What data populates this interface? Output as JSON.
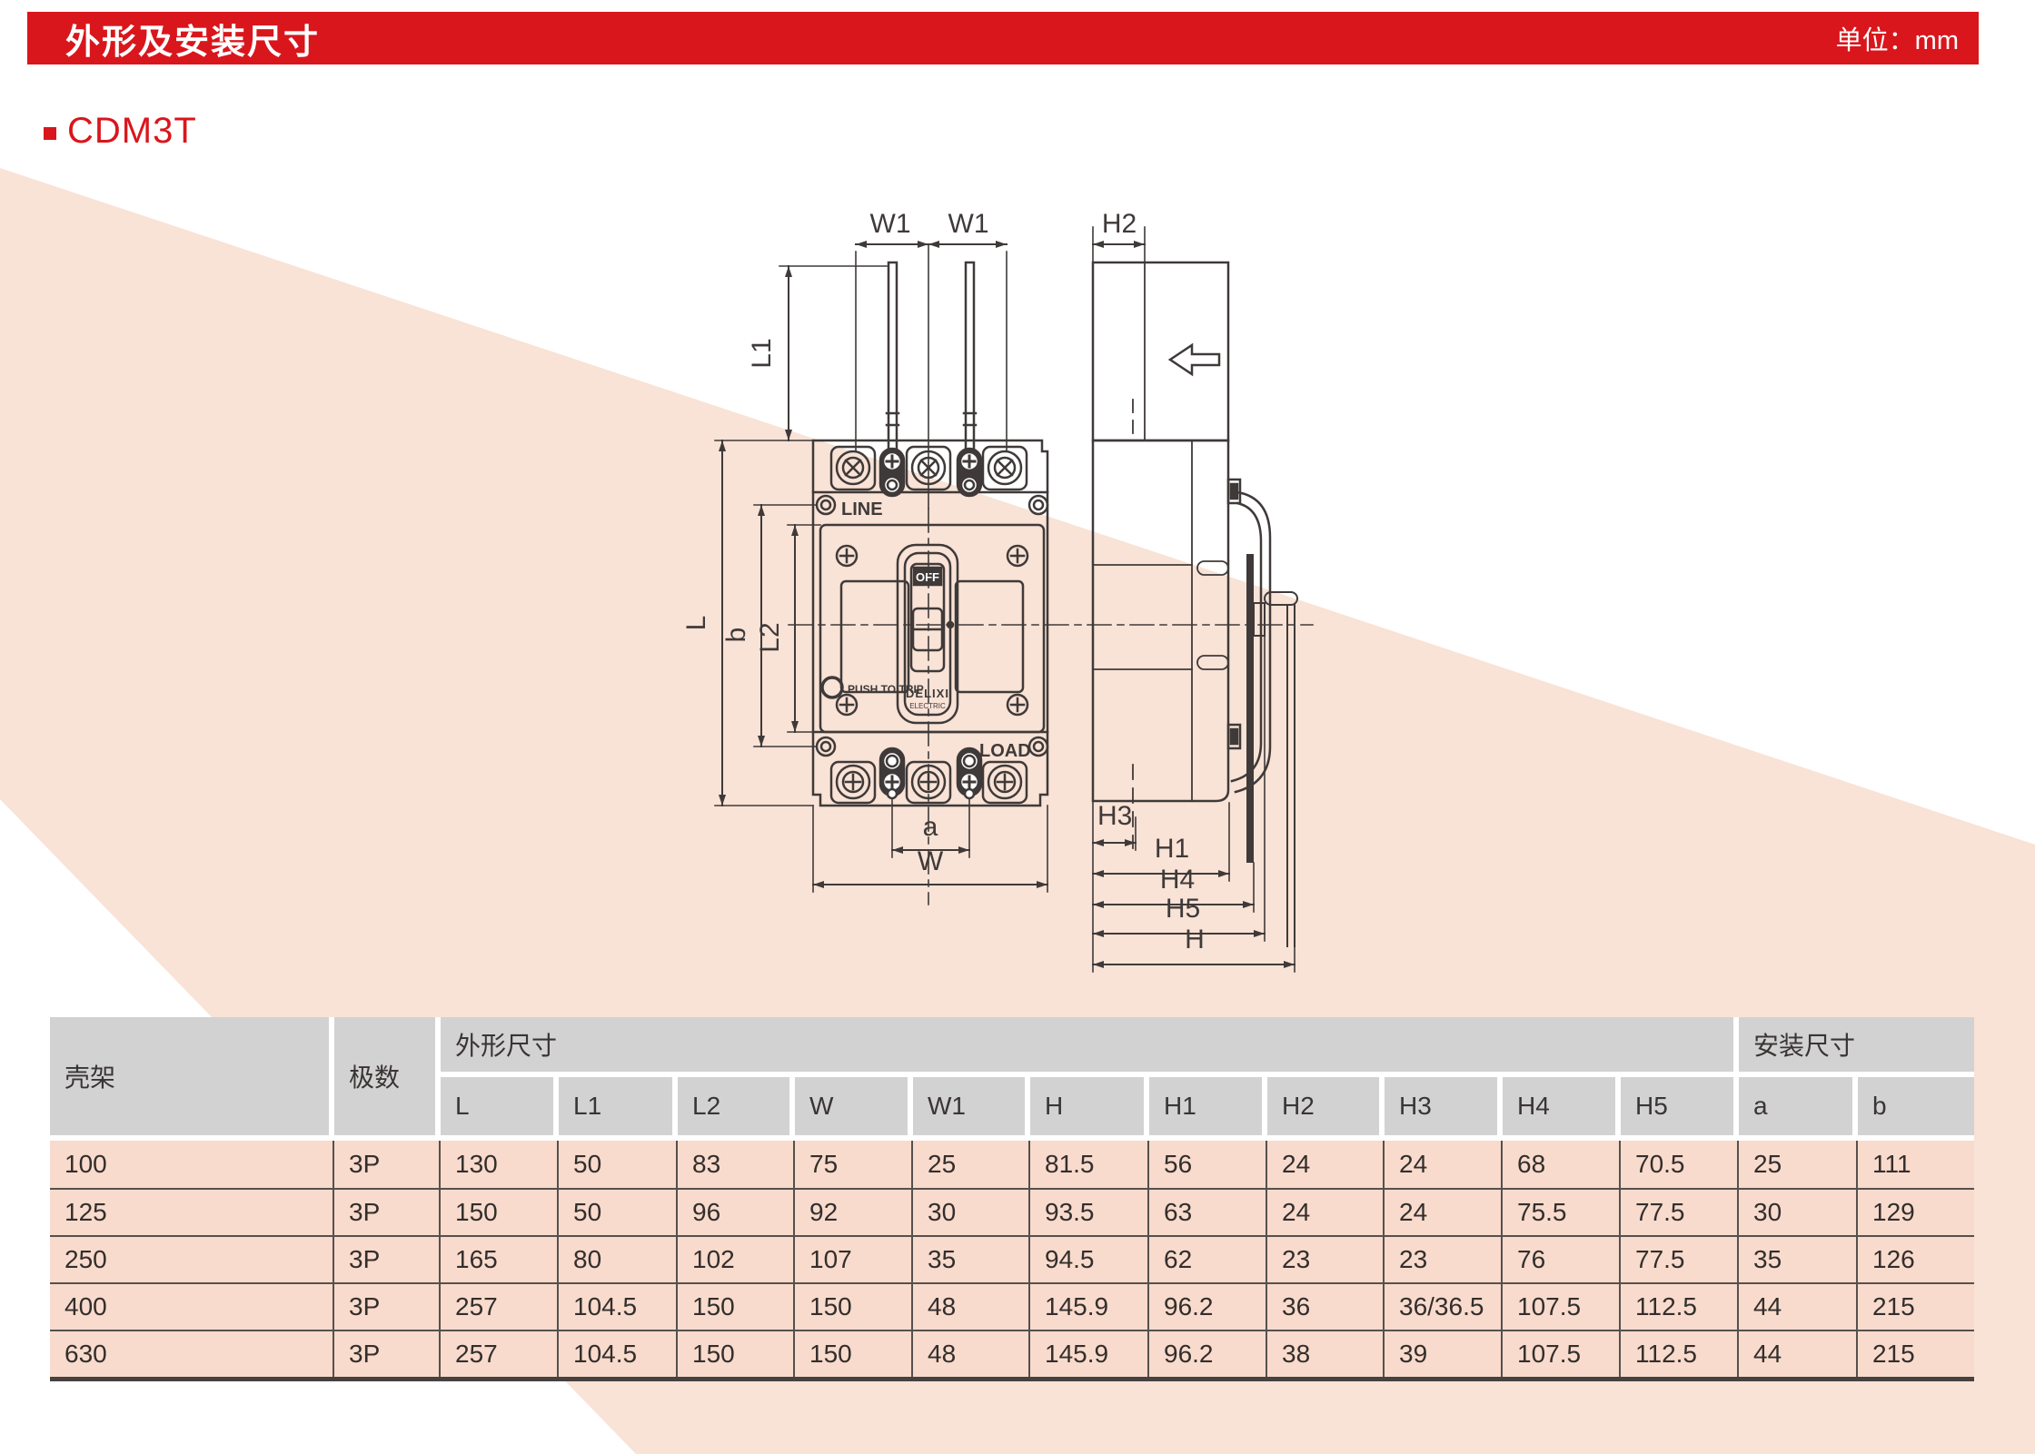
{
  "header": {
    "title": "外形及安装尺寸",
    "unit": "单位：mm"
  },
  "product": {
    "name": "CDM3T"
  },
  "drawing": {
    "front": {
      "line_label": "LINE",
      "load_label": "LOAD",
      "push_to_trip": "PUSH TO TRIP",
      "off": "OFF",
      "brand": "DELIXI",
      "brand_sub": "ELECTRIC"
    },
    "dims": {
      "w1": "W1",
      "l1": "L1",
      "l": "L",
      "b": "b",
      "l2": "L2",
      "a": "a",
      "w": "W",
      "h": "H",
      "h1": "H1",
      "h2": "H2",
      "h3": "H3",
      "h4": "H4",
      "h5": "H5"
    }
  },
  "table": {
    "group_headers": {
      "frame": "壳架",
      "poles": "极数",
      "outline": "外形尺寸",
      "install": "安装尺寸"
    },
    "columns": [
      "L",
      "L1",
      "L2",
      "W",
      "W1",
      "H",
      "H1",
      "H2",
      "H3",
      "H4",
      "H5",
      "a",
      "b"
    ],
    "rows": [
      {
        "frame": "100",
        "poles": "3P",
        "values": [
          "130",
          "50",
          "83",
          "75",
          "25",
          "81.5",
          "56",
          "24",
          "24",
          "68",
          "70.5",
          "25",
          "111"
        ]
      },
      {
        "frame": "125",
        "poles": "3P",
        "values": [
          "150",
          "50",
          "96",
          "92",
          "30",
          "93.5",
          "63",
          "24",
          "24",
          "75.5",
          "77.5",
          "30",
          "129"
        ]
      },
      {
        "frame": "250",
        "poles": "3P",
        "values": [
          "165",
          "80",
          "102",
          "107",
          "35",
          "94.5",
          "62",
          "23",
          "23",
          "76",
          "77.5",
          "35",
          "126"
        ]
      },
      {
        "frame": "400",
        "poles": "3P",
        "values": [
          "257",
          "104.5",
          "150",
          "150",
          "48",
          "145.9",
          "96.2",
          "36",
          "36/36.5",
          "107.5",
          "112.5",
          "44",
          "215"
        ]
      },
      {
        "frame": "630",
        "poles": "3P",
        "values": [
          "257",
          "104.5",
          "150",
          "150",
          "48",
          "145.9",
          "96.2",
          "38",
          "39",
          "107.5",
          "112.5",
          "44",
          "215"
        ]
      }
    ]
  },
  "colors": {
    "accent_red": "#d9161c",
    "peach": "#f9e2d6",
    "row_pink": "#f8dbcc",
    "header_gray": "#d2d2d3",
    "line_dark": "#3f3a39"
  }
}
